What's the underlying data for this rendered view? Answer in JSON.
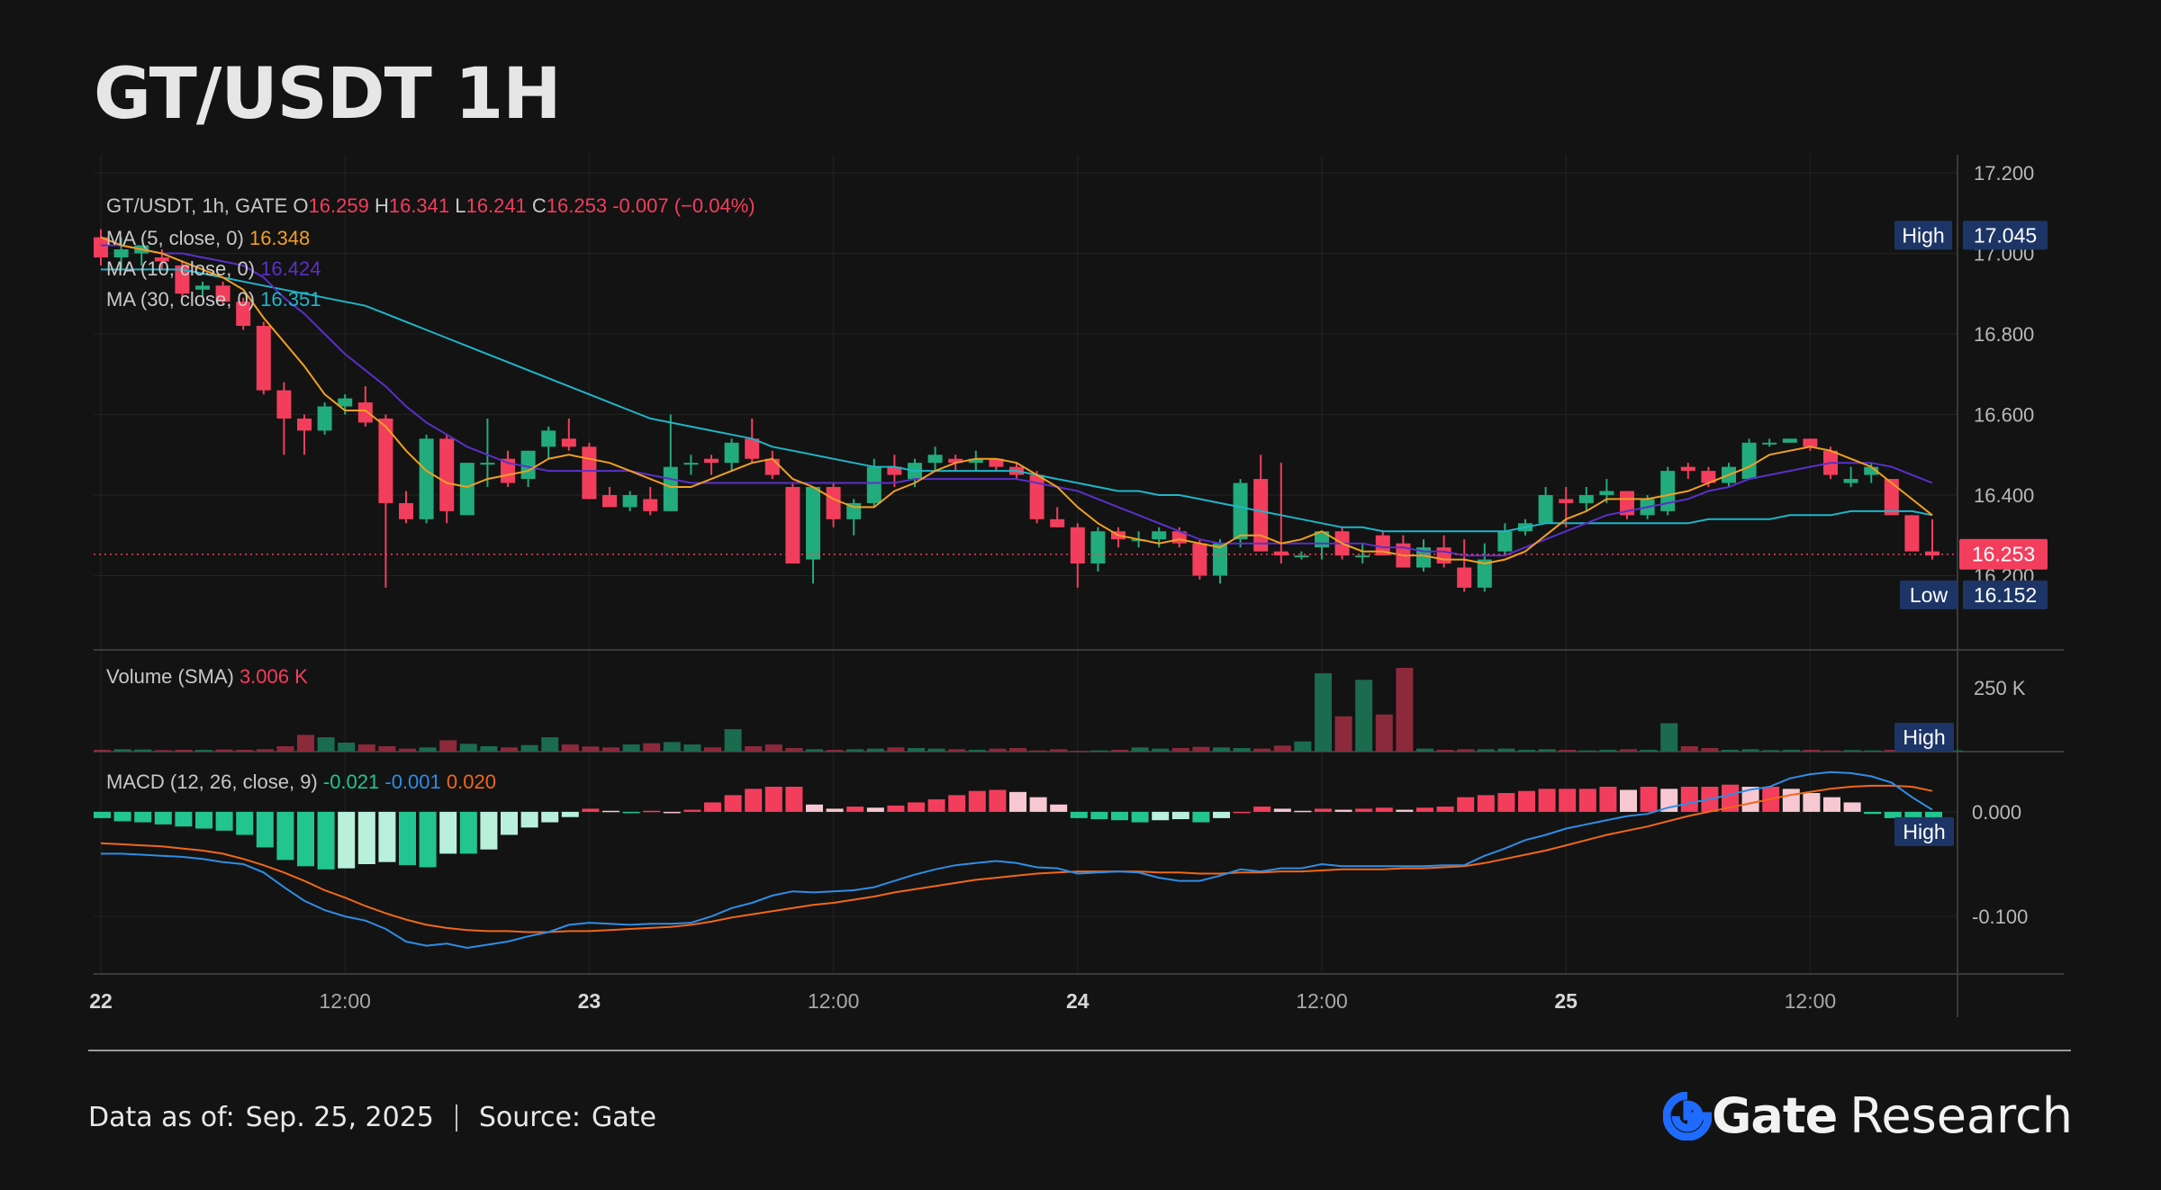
{
  "title": "GT/USDT 1H",
  "footer": {
    "data_as_of_label": "Data as of:",
    "data_as_of_value": "Sep. 25, 2025",
    "source_label": "Source:",
    "source_value": "Gate",
    "brand_gate": "Gate",
    "brand_research": "Research"
  },
  "colors": {
    "up": "#26a17b",
    "down": "#f23e5c",
    "ma5": "#f0a020",
    "ma10": "#5a30c8",
    "ma30": "#1fb5c8",
    "macd_line": "#2f8de4",
    "signal_line": "#f06818",
    "label_box": "#1d3566",
    "background": "#131313"
  },
  "chart_data": {
    "type": "candlestick",
    "header": {
      "symbol": "GT/USDT, 1h, GATE",
      "open_label": "O",
      "open": "16.259",
      "high_label": "H",
      "high": "16.341",
      "low_label": "L",
      "low": "16.241",
      "close_label": "C",
      "close": "16.253",
      "change": "-0.007 (−0.04%)"
    },
    "indicators": [
      {
        "label": "MA (5, close, 0)",
        "value": "16.348",
        "color": "#f0a020"
      },
      {
        "label": "MA (10, close, 0)",
        "value": "16.424",
        "color": "#5a30c8"
      },
      {
        "label": "MA (30, close, 0)",
        "value": "16.351",
        "color": "#1fb5c8"
      }
    ],
    "price_axis": {
      "ticks": [
        "17.200",
        "17.000",
        "16.800",
        "16.600",
        "16.400",
        "16.200"
      ],
      "range": [
        16.02,
        17.2
      ]
    },
    "price_markers": {
      "high_label": "High",
      "high_value": "17.045",
      "low_label": "Low",
      "low_value": "16.152",
      "last_value": "16.253"
    },
    "x_ticks": [
      {
        "label": "22",
        "bold": true,
        "bar": 0
      },
      {
        "label": "12:00",
        "bold": false,
        "bar": 12
      },
      {
        "label": "23",
        "bold": true,
        "bar": 24
      },
      {
        "label": "12:00",
        "bold": false,
        "bar": 36
      },
      {
        "label": "24",
        "bold": true,
        "bar": 48
      },
      {
        "label": "12:00",
        "bold": false,
        "bar": 60
      },
      {
        "label": "25",
        "bold": true,
        "bar": 72
      },
      {
        "label": "12:00",
        "bold": false,
        "bar": 84
      }
    ],
    "candles": [
      [
        17.04,
        17.06,
        16.97,
        16.99
      ],
      [
        16.99,
        17.04,
        16.96,
        17.01
      ],
      [
        17.0,
        17.02,
        16.97,
        17.02
      ],
      [
        16.99,
        17.01,
        16.96,
        16.98
      ],
      [
        16.97,
        16.98,
        16.89,
        16.9
      ],
      [
        16.91,
        16.93,
        16.89,
        16.92
      ],
      [
        16.92,
        16.93,
        16.87,
        16.88
      ],
      [
        16.88,
        16.89,
        16.81,
        16.82
      ],
      [
        16.82,
        16.83,
        16.65,
        16.66
      ],
      [
        16.66,
        16.68,
        16.5,
        16.59
      ],
      [
        16.59,
        16.6,
        16.5,
        16.56
      ],
      [
        16.56,
        16.63,
        16.55,
        16.62
      ],
      [
        16.62,
        16.65,
        16.6,
        16.64
      ],
      [
        16.63,
        16.67,
        16.57,
        16.58
      ],
      [
        16.59,
        16.6,
        16.17,
        16.38
      ],
      [
        16.38,
        16.41,
        16.33,
        16.34
      ],
      [
        16.34,
        16.55,
        16.33,
        16.54
      ],
      [
        16.54,
        16.55,
        16.33,
        16.36
      ],
      [
        16.35,
        16.48,
        16.35,
        16.48
      ],
      [
        16.48,
        16.59,
        16.42,
        16.48
      ],
      [
        16.49,
        16.51,
        16.42,
        16.43
      ],
      [
        16.44,
        16.51,
        16.42,
        16.51
      ],
      [
        16.52,
        16.57,
        16.49,
        16.56
      ],
      [
        16.54,
        16.59,
        16.51,
        16.52
      ],
      [
        16.52,
        16.53,
        16.39,
        16.39
      ],
      [
        16.4,
        16.42,
        16.37,
        16.37
      ],
      [
        16.37,
        16.41,
        16.36,
        16.4
      ],
      [
        16.39,
        16.42,
        16.35,
        16.36
      ],
      [
        16.36,
        16.6,
        16.36,
        16.47
      ],
      [
        16.48,
        16.5,
        16.45,
        16.48
      ],
      [
        16.49,
        16.5,
        16.45,
        16.48
      ],
      [
        16.48,
        16.54,
        16.46,
        16.53
      ],
      [
        16.54,
        16.59,
        16.48,
        16.49
      ],
      [
        16.49,
        16.51,
        16.44,
        16.45
      ],
      [
        16.42,
        16.43,
        16.23,
        16.23
      ],
      [
        16.24,
        16.42,
        16.18,
        16.42
      ],
      [
        16.42,
        16.43,
        16.32,
        16.34
      ],
      [
        16.34,
        16.39,
        16.3,
        16.38
      ],
      [
        16.38,
        16.49,
        16.37,
        16.47
      ],
      [
        16.47,
        16.5,
        16.42,
        16.45
      ],
      [
        16.44,
        16.49,
        16.42,
        16.48
      ],
      [
        16.48,
        16.52,
        16.46,
        16.5
      ],
      [
        16.49,
        16.5,
        16.46,
        16.48
      ],
      [
        16.48,
        16.51,
        16.46,
        16.49
      ],
      [
        16.49,
        16.49,
        16.46,
        16.47
      ],
      [
        16.47,
        16.48,
        16.44,
        16.45
      ],
      [
        16.45,
        16.46,
        16.33,
        16.34
      ],
      [
        16.34,
        16.37,
        16.32,
        16.32
      ],
      [
        16.32,
        16.33,
        16.17,
        16.23
      ],
      [
        16.23,
        16.32,
        16.21,
        16.31
      ],
      [
        16.31,
        16.32,
        16.27,
        16.29
      ],
      [
        16.29,
        16.31,
        16.27,
        16.29
      ],
      [
        16.29,
        16.32,
        16.27,
        16.31
      ],
      [
        16.31,
        16.32,
        16.27,
        16.28
      ],
      [
        16.28,
        16.29,
        16.19,
        16.2
      ],
      [
        16.2,
        16.29,
        16.18,
        16.28
      ],
      [
        16.29,
        16.44,
        16.27,
        16.43
      ],
      [
        16.44,
        16.5,
        16.26,
        16.26
      ],
      [
        16.26,
        16.48,
        16.23,
        16.25
      ],
      [
        16.25,
        16.26,
        16.24,
        16.25
      ],
      [
        16.27,
        16.31,
        16.24,
        16.31
      ],
      [
        16.31,
        16.32,
        16.24,
        16.25
      ],
      [
        16.25,
        16.28,
        16.23,
        16.25
      ],
      [
        16.3,
        16.31,
        16.25,
        16.25
      ],
      [
        16.28,
        16.3,
        16.22,
        16.22
      ],
      [
        16.22,
        16.29,
        16.21,
        16.27
      ],
      [
        16.27,
        16.3,
        16.22,
        16.23
      ],
      [
        16.22,
        16.29,
        16.16,
        16.17
      ],
      [
        16.17,
        16.28,
        16.16,
        16.24
      ],
      [
        16.26,
        16.33,
        16.25,
        16.31
      ],
      [
        16.31,
        16.34,
        16.3,
        16.33
      ],
      [
        16.33,
        16.42,
        16.33,
        16.4
      ],
      [
        16.39,
        16.42,
        16.32,
        16.38
      ],
      [
        16.38,
        16.42,
        16.36,
        16.4
      ],
      [
        16.4,
        16.44,
        16.38,
        16.41
      ],
      [
        16.41,
        16.41,
        16.34,
        16.35
      ],
      [
        16.35,
        16.4,
        16.34,
        16.39
      ],
      [
        16.36,
        16.47,
        16.35,
        16.46
      ],
      [
        16.47,
        16.48,
        16.44,
        16.46
      ],
      [
        16.46,
        16.47,
        16.42,
        16.43
      ],
      [
        16.43,
        16.48,
        16.42,
        16.47
      ],
      [
        16.44,
        16.54,
        16.44,
        16.53
      ],
      [
        16.53,
        16.54,
        16.52,
        16.53
      ],
      [
        16.53,
        16.54,
        16.53,
        16.54
      ],
      [
        16.54,
        16.54,
        16.51,
        16.52
      ],
      [
        16.51,
        16.52,
        16.44,
        16.45
      ],
      [
        16.43,
        16.47,
        16.42,
        16.44
      ],
      [
        16.45,
        16.48,
        16.43,
        16.47
      ],
      [
        16.44,
        16.44,
        16.35,
        16.35
      ],
      [
        16.35,
        16.35,
        16.26,
        16.26
      ],
      [
        16.26,
        16.34,
        16.24,
        16.25
      ]
    ],
    "ma5": [
      17.04,
      17.02,
      17.01,
      17.0,
      16.98,
      16.96,
      16.94,
      16.91,
      16.84,
      16.78,
      16.72,
      16.65,
      16.61,
      16.61,
      16.57,
      16.51,
      16.46,
      16.43,
      16.42,
      16.44,
      16.45,
      16.46,
      16.49,
      16.5,
      16.49,
      16.48,
      16.46,
      16.44,
      16.42,
      16.42,
      16.44,
      16.46,
      16.48,
      16.49,
      16.44,
      16.42,
      16.39,
      16.37,
      16.37,
      16.41,
      16.43,
      16.46,
      16.48,
      16.49,
      16.49,
      16.48,
      16.45,
      16.42,
      16.37,
      16.33,
      16.3,
      16.29,
      16.28,
      16.29,
      16.28,
      16.27,
      16.3,
      16.3,
      16.28,
      16.29,
      16.31,
      16.28,
      16.26,
      16.26,
      16.25,
      16.25,
      16.24,
      16.24,
      16.23,
      16.24,
      16.26,
      16.3,
      16.34,
      16.36,
      16.39,
      16.39,
      16.39,
      16.4,
      16.41,
      16.43,
      16.45,
      16.47,
      16.5,
      16.51,
      16.52,
      16.51,
      16.49,
      16.47,
      16.43,
      16.39,
      16.35
    ],
    "ma10": [
      17.02,
      17.02,
      17.01,
      17.0,
      17.0,
      16.99,
      16.98,
      16.97,
      16.94,
      16.89,
      16.85,
      16.8,
      16.75,
      16.71,
      16.67,
      16.62,
      16.58,
      16.55,
      16.52,
      16.5,
      16.48,
      16.47,
      16.46,
      16.46,
      16.46,
      16.46,
      16.46,
      16.45,
      16.44,
      16.43,
      16.43,
      16.43,
      16.43,
      16.43,
      16.43,
      16.43,
      16.43,
      16.43,
      16.43,
      16.43,
      16.44,
      16.44,
      16.44,
      16.44,
      16.44,
      16.44,
      16.43,
      16.42,
      16.41,
      16.39,
      16.37,
      16.35,
      16.33,
      16.31,
      16.29,
      16.28,
      16.28,
      16.28,
      16.28,
      16.28,
      16.28,
      16.28,
      16.28,
      16.27,
      16.27,
      16.26,
      16.26,
      16.25,
      16.25,
      16.25,
      16.27,
      16.29,
      16.31,
      16.33,
      16.35,
      16.36,
      16.37,
      16.38,
      16.39,
      16.41,
      16.42,
      16.44,
      16.45,
      16.46,
      16.47,
      16.48,
      16.48,
      16.48,
      16.47,
      16.45,
      16.43
    ],
    "ma30": [
      16.96,
      16.96,
      16.96,
      16.96,
      16.96,
      16.95,
      16.94,
      16.93,
      16.92,
      16.91,
      16.9,
      16.89,
      16.88,
      16.87,
      16.85,
      16.83,
      16.81,
      16.79,
      16.77,
      16.75,
      16.73,
      16.71,
      16.69,
      16.67,
      16.65,
      16.63,
      16.61,
      16.59,
      16.58,
      16.57,
      16.56,
      16.55,
      16.54,
      16.52,
      16.51,
      16.5,
      16.49,
      16.48,
      16.47,
      16.47,
      16.46,
      16.46,
      16.46,
      16.46,
      16.46,
      16.46,
      16.45,
      16.44,
      16.43,
      16.42,
      16.41,
      16.41,
      16.4,
      16.4,
      16.39,
      16.38,
      16.37,
      16.36,
      16.35,
      16.34,
      16.33,
      16.32,
      16.32,
      16.31,
      16.31,
      16.31,
      16.31,
      16.31,
      16.31,
      16.31,
      16.32,
      16.33,
      16.33,
      16.33,
      16.33,
      16.33,
      16.33,
      16.33,
      16.33,
      16.34,
      16.34,
      16.34,
      16.34,
      16.35,
      16.35,
      16.35,
      16.36,
      16.36,
      16.36,
      16.36,
      16.35
    ],
    "volume": {
      "label": "Volume (SMA)",
      "value": "3.006 K",
      "tick": "250 K",
      "high_label": "High",
      "range": [
        0,
        340
      ],
      "values": [
        6,
        8,
        7,
        5,
        6,
        6,
        7,
        6,
        8,
        18,
        56,
        48,
        30,
        24,
        18,
        10,
        14,
        38,
        26,
        18,
        14,
        22,
        48,
        24,
        17,
        14,
        24,
        28,
        32,
        24,
        14,
        75,
        18,
        24,
        12,
        8,
        6,
        8,
        10,
        14,
        12,
        10,
        8,
        6,
        10,
        12,
        4,
        8,
        2,
        4,
        6,
        14,
        10,
        12,
        16,
        14,
        12,
        10,
        20,
        34,
        262,
        118,
        240,
        124,
        280,
        10,
        6,
        8,
        8,
        10,
        6,
        8,
        6,
        4,
        6,
        8,
        6,
        95,
        18,
        12,
        6,
        8,
        5,
        6,
        6,
        4,
        5,
        4,
        6,
        8,
        6,
        4
      ]
    },
    "macd": {
      "label": "MACD (12, 26, close, 9)",
      "values": [
        "-0.021",
        "-0.001",
        "0.020"
      ],
      "ticks": [
        "0.000",
        "-0.100"
      ],
      "range": [
        -0.155,
        0.055
      ],
      "high_label": "High",
      "histogram": [
        -0.006,
        -0.009,
        -0.01,
        -0.012,
        -0.014,
        -0.016,
        -0.018,
        -0.022,
        -0.034,
        -0.046,
        -0.052,
        -0.055,
        -0.054,
        -0.05,
        -0.048,
        -0.051,
        -0.053,
        -0.04,
        -0.04,
        -0.036,
        -0.022,
        -0.015,
        -0.01,
        -0.005,
        0.003,
        0.001,
        -0.001,
        0.001,
        0.0,
        0.002,
        0.009,
        0.016,
        0.022,
        0.024,
        0.024,
        0.007,
        0.003,
        0.005,
        0.004,
        0.006,
        0.009,
        0.012,
        0.016,
        0.02,
        0.021,
        0.019,
        0.014,
        0.007,
        -0.006,
        -0.007,
        -0.008,
        -0.01,
        -0.008,
        -0.007,
        -0.01,
        -0.006,
        0.0,
        0.005,
        0.003,
        0.001,
        0.003,
        0.002,
        0.003,
        0.004,
        0.002,
        0.004,
        0.005,
        0.014,
        0.016,
        0.018,
        0.02,
        0.022,
        0.022,
        0.022,
        0.024,
        0.021,
        0.024,
        0.022,
        0.024,
        0.024,
        0.026,
        0.024,
        0.024,
        0.022,
        0.018,
        0.014,
        0.009,
        -0.002,
        -0.006,
        -0.021,
        -0.021
      ],
      "macd_line": [
        -0.04,
        -0.04,
        -0.041,
        -0.042,
        -0.043,
        -0.045,
        -0.048,
        -0.05,
        -0.058,
        -0.072,
        -0.085,
        -0.094,
        -0.1,
        -0.104,
        -0.112,
        -0.124,
        -0.128,
        -0.126,
        -0.13,
        -0.127,
        -0.124,
        -0.119,
        -0.115,
        -0.108,
        -0.106,
        -0.107,
        -0.108,
        -0.107,
        -0.107,
        -0.106,
        -0.1,
        -0.092,
        -0.087,
        -0.08,
        -0.076,
        -0.077,
        -0.076,
        -0.075,
        -0.072,
        -0.066,
        -0.06,
        -0.055,
        -0.051,
        -0.049,
        -0.047,
        -0.049,
        -0.053,
        -0.054,
        -0.059,
        -0.058,
        -0.057,
        -0.058,
        -0.063,
        -0.066,
        -0.066,
        -0.061,
        -0.055,
        -0.057,
        -0.054,
        -0.054,
        -0.05,
        -0.052,
        -0.052,
        -0.052,
        -0.052,
        -0.052,
        -0.051,
        -0.051,
        -0.042,
        -0.035,
        -0.027,
        -0.022,
        -0.016,
        -0.012,
        -0.008,
        -0.004,
        -0.002,
        0.004,
        0.008,
        0.012,
        0.016,
        0.021,
        0.024,
        0.032,
        0.036,
        0.038,
        0.037,
        0.034,
        0.028,
        0.014,
        0.002
      ],
      "signal_line": [
        -0.03,
        -0.031,
        -0.032,
        -0.033,
        -0.035,
        -0.037,
        -0.04,
        -0.045,
        -0.051,
        -0.058,
        -0.066,
        -0.075,
        -0.082,
        -0.09,
        -0.097,
        -0.103,
        -0.108,
        -0.111,
        -0.113,
        -0.114,
        -0.114,
        -0.115,
        -0.115,
        -0.114,
        -0.114,
        -0.113,
        -0.112,
        -0.111,
        -0.11,
        -0.108,
        -0.105,
        -0.101,
        -0.098,
        -0.095,
        -0.092,
        -0.089,
        -0.087,
        -0.084,
        -0.081,
        -0.077,
        -0.074,
        -0.071,
        -0.068,
        -0.065,
        -0.063,
        -0.061,
        -0.059,
        -0.058,
        -0.057,
        -0.057,
        -0.057,
        -0.057,
        -0.058,
        -0.058,
        -0.059,
        -0.059,
        -0.058,
        -0.058,
        -0.057,
        -0.057,
        -0.056,
        -0.055,
        -0.055,
        -0.055,
        -0.054,
        -0.054,
        -0.053,
        -0.052,
        -0.049,
        -0.045,
        -0.041,
        -0.037,
        -0.032,
        -0.027,
        -0.022,
        -0.018,
        -0.014,
        -0.009,
        -0.004,
        0.0,
        0.004,
        0.008,
        0.012,
        0.016,
        0.019,
        0.022,
        0.024,
        0.025,
        0.025,
        0.024,
        0.02
      ]
    }
  }
}
